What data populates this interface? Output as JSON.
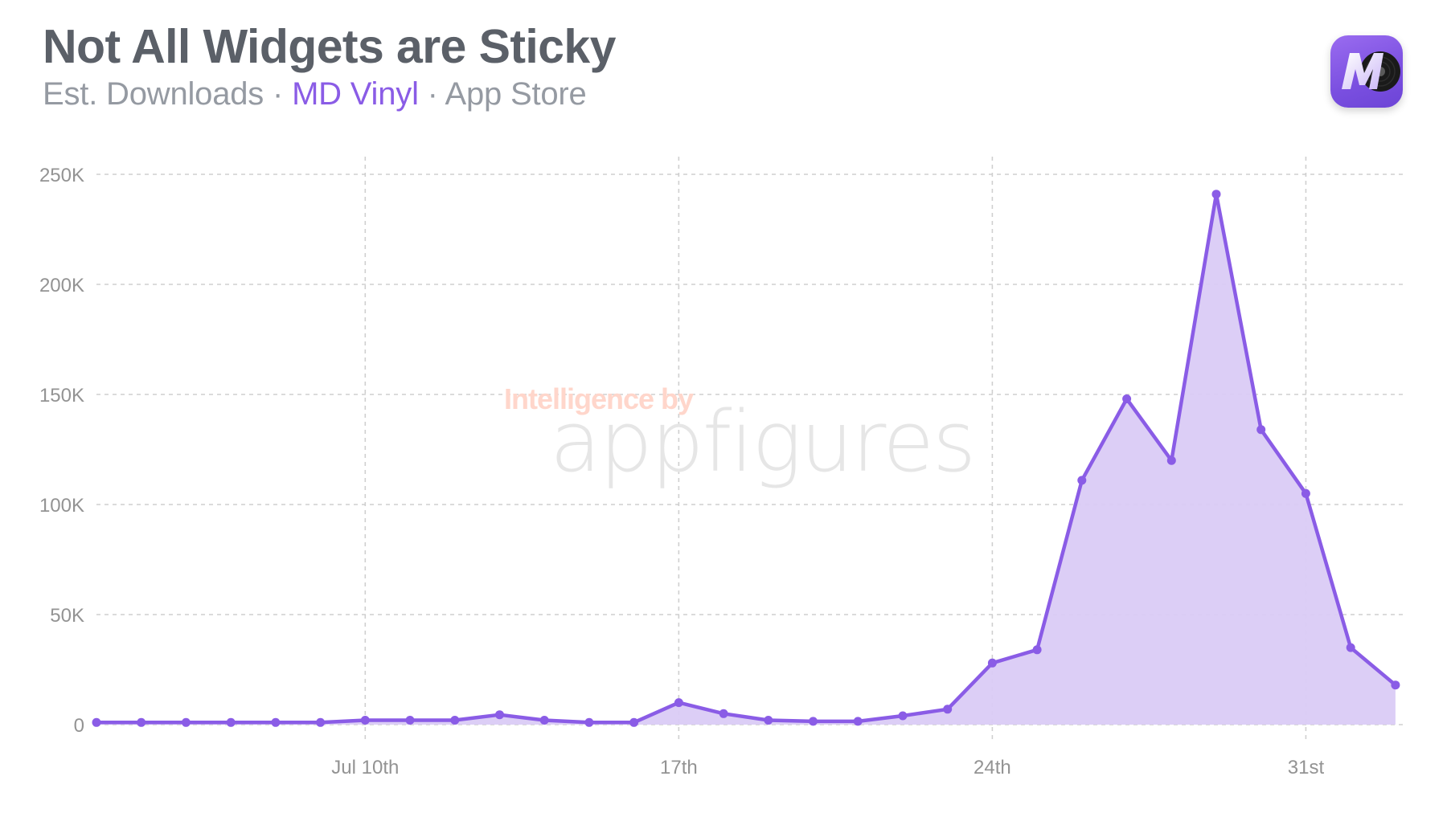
{
  "header": {
    "title": "Not All Widgets are Sticky",
    "subtitle_prefix": "Est. Downloads · ",
    "subtitle_app": "MD Vinyl",
    "subtitle_suffix": " · App Store"
  },
  "app_icon": {
    "name": "md-vinyl-app-icon",
    "letter": "M",
    "colors": {
      "background": "#7a4fe0",
      "record": "#1a1a1a"
    }
  },
  "watermark": {
    "line1": "Intelligence by",
    "line2": "appfigures"
  },
  "colors": {
    "line": "#8a5ce6",
    "fill": "#dacbf6",
    "grid": "#cfcfcf",
    "title": "#5b6068",
    "subtitle": "#959aa2",
    "accent": "#8a5ce6"
  },
  "chart_data": {
    "type": "area",
    "title": "Not All Widgets are Sticky",
    "subtitle": "Est. Downloads · MD Vinyl · App Store",
    "xlabel": "",
    "ylabel": "Est. Downloads",
    "x": [
      "Jul 4",
      "Jul 5",
      "Jul 6",
      "Jul 7",
      "Jul 8",
      "Jul 9",
      "Jul 10",
      "Jul 11",
      "Jul 12",
      "Jul 13",
      "Jul 14",
      "Jul 15",
      "Jul 16",
      "Jul 17",
      "Jul 18",
      "Jul 19",
      "Jul 20",
      "Jul 21",
      "Jul 22",
      "Jul 23",
      "Jul 24",
      "Jul 25",
      "Jul 26",
      "Jul 27",
      "Jul 28",
      "Jul 29",
      "Jul 30",
      "Jul 31",
      "Aug 1",
      "Aug 2"
    ],
    "series": [
      {
        "name": "MD Vinyl",
        "values": [
          1000,
          1000,
          1000,
          1000,
          1000,
          1000,
          2000,
          2000,
          2000,
          4500,
          2000,
          1000,
          1000,
          10000,
          5000,
          2000,
          1500,
          1500,
          4000,
          7000,
          28000,
          34000,
          111000,
          148000,
          120000,
          241000,
          134000,
          105000,
          35000,
          18000
        ]
      }
    ],
    "ylim": [
      0,
      250000
    ],
    "y_ticks": [
      {
        "value": 0,
        "label": "0"
      },
      {
        "value": 50000,
        "label": "50K"
      },
      {
        "value": 100000,
        "label": "100K"
      },
      {
        "value": 150000,
        "label": "150K"
      },
      {
        "value": 200000,
        "label": "200K"
      },
      {
        "value": 250000,
        "label": "250K"
      }
    ],
    "x_ticks": [
      {
        "index": 6,
        "label": "Jul 10th"
      },
      {
        "index": 13,
        "label": "17th"
      },
      {
        "index": 20,
        "label": "24th"
      },
      {
        "index": 27,
        "label": "31st"
      }
    ],
    "grid": true,
    "legend": "none"
  }
}
